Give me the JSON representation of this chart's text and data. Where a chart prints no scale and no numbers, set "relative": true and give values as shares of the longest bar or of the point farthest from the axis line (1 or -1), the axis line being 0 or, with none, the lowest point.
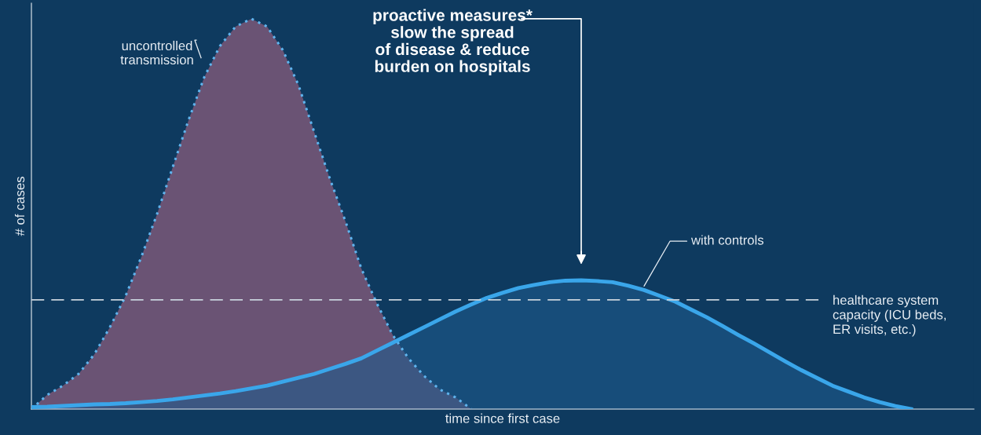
{
  "chart_data": {
    "type": "area",
    "relative": true,
    "xlabel": "time since first case",
    "ylabel": "# of cases",
    "categories": [
      null,
      null,
      null,
      null,
      null,
      null,
      null,
      null,
      null,
      null,
      null,
      null,
      null,
      null,
      null,
      null,
      null,
      null,
      null,
      null,
      null,
      null,
      null,
      null,
      null,
      null,
      null,
      null,
      null,
      null,
      null,
      null,
      null,
      null,
      null,
      null,
      null,
      null,
      null,
      null,
      null,
      null,
      null,
      null,
      null,
      null,
      null,
      null,
      null,
      null,
      null,
      null,
      null,
      null,
      null,
      null,
      null
    ],
    "series": [
      {
        "name": "uncontrolled transmission",
        "color": "#5fb4ee",
        "line_style": "dotted",
        "values": [
          0,
          0.036,
          0.06,
          0.09,
          0.14,
          0.21,
          0.29,
          0.39,
          0.5,
          0.62,
          0.74,
          0.85,
          0.93,
          0.98,
          1.0,
          0.98,
          0.92,
          0.83,
          0.71,
          0.59,
          0.48,
          0.36,
          0.27,
          0.19,
          0.13,
          0.085,
          0.05,
          0.03,
          0,
          null,
          null,
          null,
          null,
          null,
          null,
          null,
          null,
          null,
          null,
          null,
          null,
          null,
          null,
          null,
          null,
          null,
          null,
          null,
          null,
          null,
          null,
          null,
          null,
          null,
          null,
          null,
          null
        ]
      },
      {
        "name": "with controls",
        "color": "#3aa6ea",
        "line_style": "solid",
        "values": [
          0.005,
          0.006,
          0.008,
          0.01,
          0.012,
          0.013,
          0.015,
          0.018,
          0.021,
          0.025,
          0.03,
          0.035,
          0.04,
          0.046,
          0.053,
          0.06,
          0.07,
          0.08,
          0.09,
          0.103,
          0.116,
          0.13,
          0.15,
          0.17,
          0.19,
          0.21,
          0.23,
          0.25,
          0.268,
          0.285,
          0.298,
          0.31,
          0.318,
          0.325,
          0.329,
          0.33,
          0.328,
          0.325,
          0.316,
          0.305,
          0.29,
          0.275,
          0.255,
          0.235,
          0.213,
          0.19,
          0.168,
          0.145,
          0.122,
          0.1,
          0.08,
          0.06,
          0.045,
          0.03,
          0.018,
          0.008,
          0
        ]
      }
    ],
    "ref_lines": [
      {
        "axis": "y",
        "value": 0.28,
        "label": "healthcare system capacity (ICU beds, ER visits, etc.)",
        "color": "#c8d2dc",
        "line_style": "dashed"
      }
    ],
    "annotations": [
      "proactive measures* slow the spread of disease & reduce burden on hospitals"
    ],
    "legend": false
  }
}
